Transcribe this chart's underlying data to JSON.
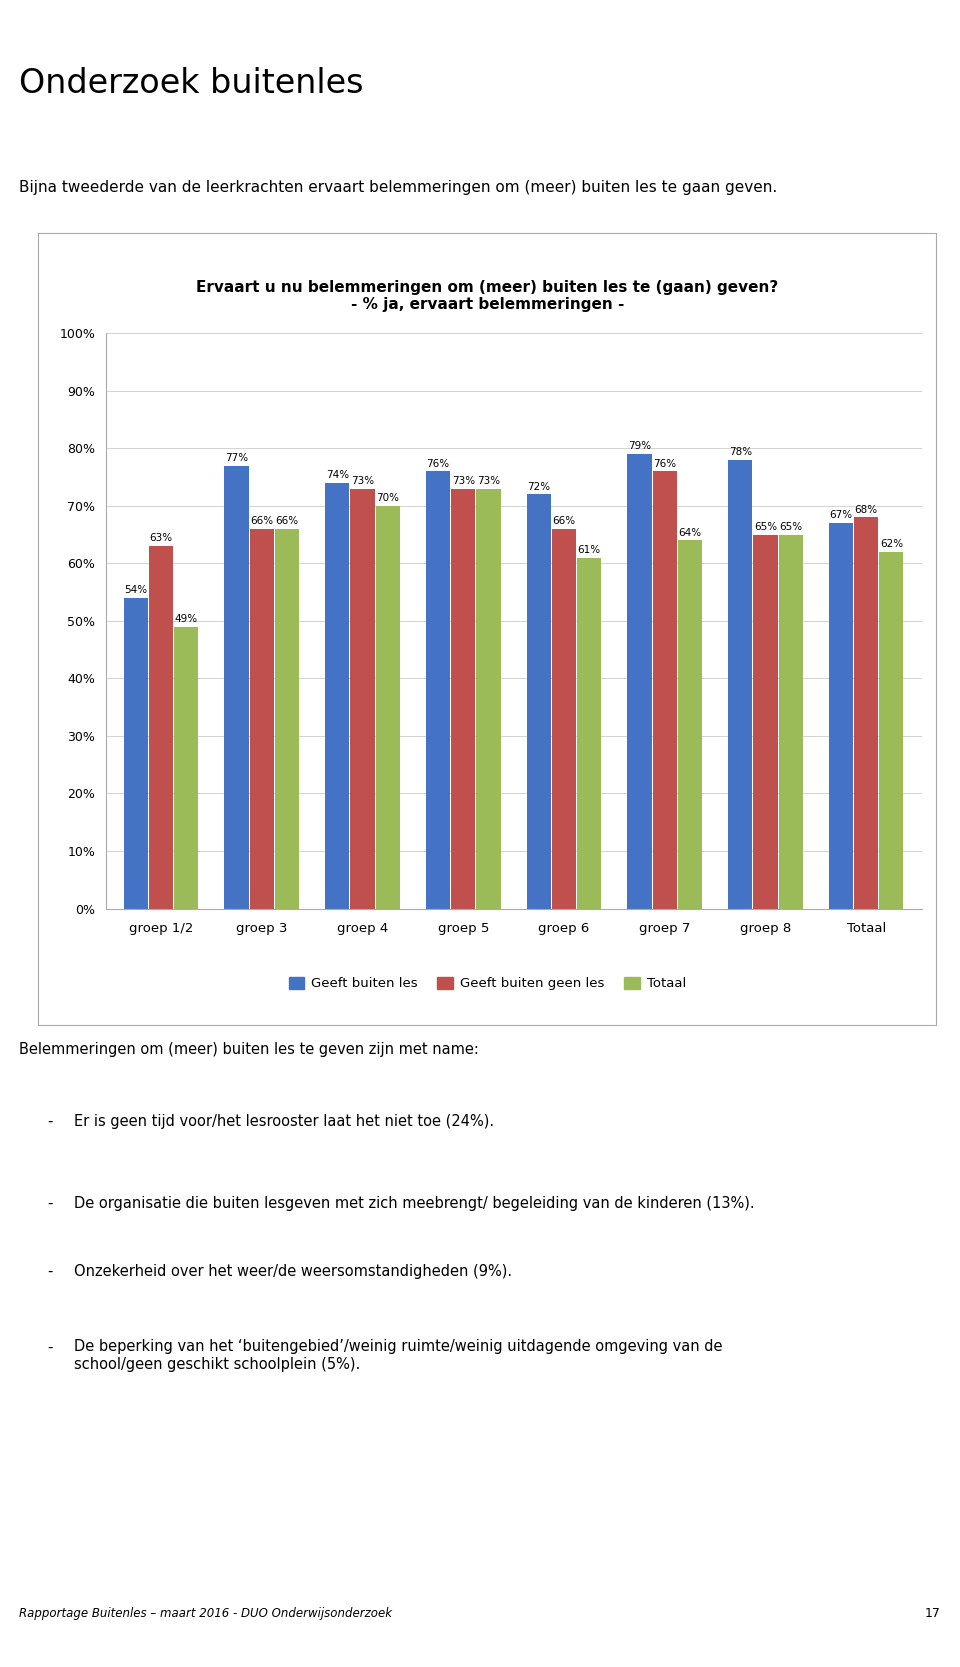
{
  "title_line1": "Ervaart u nu belemmeringen om (meer) buiten les te (gaan) geven?",
  "title_line2": "- % ja, ervaart belemmeringen -",
  "header_title": "Onderzoek buitenles",
  "intro_text": "Bijna tweederde van de leerkrachten ervaart belemmeringen om (meer) buiten les te gaan geven.",
  "categories": [
    "groep 1/2",
    "groep 3",
    "groep 4",
    "groep 5",
    "groep 6",
    "groep 7",
    "groep 8",
    "Totaal"
  ],
  "series": {
    "Geeft buiten les": [
      54,
      77,
      74,
      76,
      72,
      79,
      78,
      67
    ],
    "Geeft buiten geen les": [
      63,
      66,
      73,
      73,
      66,
      76,
      65,
      68
    ],
    "Totaal": [
      49,
      66,
      70,
      73,
      61,
      64,
      65,
      62
    ]
  },
  "colors": {
    "Geeft buiten les": "#4472C4",
    "Geeft buiten geen les": "#C0504D",
    "Totaal": "#9BBB59"
  },
  "ylim": [
    0,
    100
  ],
  "yticks": [
    0,
    10,
    20,
    30,
    40,
    50,
    60,
    70,
    80,
    90,
    100
  ],
  "ytick_labels": [
    "0%",
    "10%",
    "20%",
    "30%",
    "40%",
    "50%",
    "60%",
    "70%",
    "80%",
    "90%",
    "100%"
  ],
  "footer_text": "Rapportage Buitenles – maart 2016 - DUO Onderwijsonderzoek",
  "footer_page": "17",
  "bullet_intro": "Belemmeringen om (meer) buiten les te geven zijn met name:",
  "bullet_points": [
    "Er is geen tijd voor/het lesrooster laat het niet toe (24%).",
    "De organisatie die buiten lesgeven met zich meebrengt/ begeleiding van de kinderen (13%).",
    "Onzekerheid over het weer/de weersomstandigheden (9%).",
    "De beperking van het ‘buitengebied’/weinig ruimte/weinig uitdagende omgeving van de\nschool/geen geschikt schoolplein (5%)."
  ],
  "bar_width": 0.25,
  "figure_bg": "#FFFFFF",
  "chart_bg": "#FFFFFF",
  "top_bar_color": "#7AC143",
  "duo_green": "#7AC143",
  "duo_gray": "#5A5A5A",
  "header_line_color": "#7AC143"
}
